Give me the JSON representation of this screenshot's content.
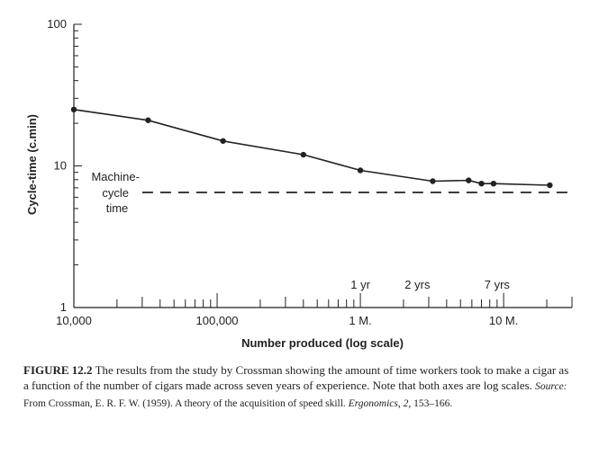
{
  "chart_data": {
    "type": "line",
    "title": "",
    "xlabel": "Number produced (log scale)",
    "ylabel": "Cycle-time (c.min)",
    "x_scale": "log",
    "y_scale": "log",
    "xlim": [
      10000,
      30000000
    ],
    "ylim": [
      1,
      100
    ],
    "x_tick_labels": [
      {
        "value": 10000,
        "label": "10,000"
      },
      {
        "value": 100000,
        "label": "100,000"
      },
      {
        "value": 1000000,
        "label": "1 M."
      },
      {
        "value": 10000000,
        "label": "10 M."
      }
    ],
    "y_tick_labels": [
      {
        "value": 1,
        "label": "1"
      },
      {
        "value": 10,
        "label": "10"
      },
      {
        "value": 100,
        "label": "100"
      }
    ],
    "series": [
      {
        "x": [
          10000,
          33000,
          110000,
          400000,
          1000000,
          3200000,
          5700000,
          7000000,
          8500000,
          21000000
        ],
        "y": [
          25,
          21,
          15,
          12,
          9.3,
          7.8,
          7.9,
          7.5,
          7.5,
          7.3
        ]
      }
    ],
    "reference_line": {
      "y": 6.5,
      "x_start": 30000,
      "x_end": 30000000,
      "style": "dashed",
      "label": "Machine-cycle time"
    },
    "annotations": [
      {
        "x": 1000000,
        "label": "1 yr"
      },
      {
        "x": 2500000,
        "label": "2 yrs"
      },
      {
        "x": 9000000,
        "label": "7 yrs"
      }
    ],
    "grid": false,
    "color": "#222222"
  },
  "labels": {
    "machine_line1": "Machine-",
    "machine_line2": "cycle",
    "machine_line3": "time"
  },
  "caption": {
    "label": "FIGURE 12.2",
    "text": "The results from the study by Crossman showing the amount of time workers took to make a cigar as a function of the number of cigars made across seven years of experience. Note that both axes are log scales.",
    "source_label": "Source:",
    "source_text": "From Crossman, E. R. F. W. (1959). A theory of the acquisition of speed skill.",
    "journal": "Ergonomics, 2,",
    "pages": "153–166."
  }
}
